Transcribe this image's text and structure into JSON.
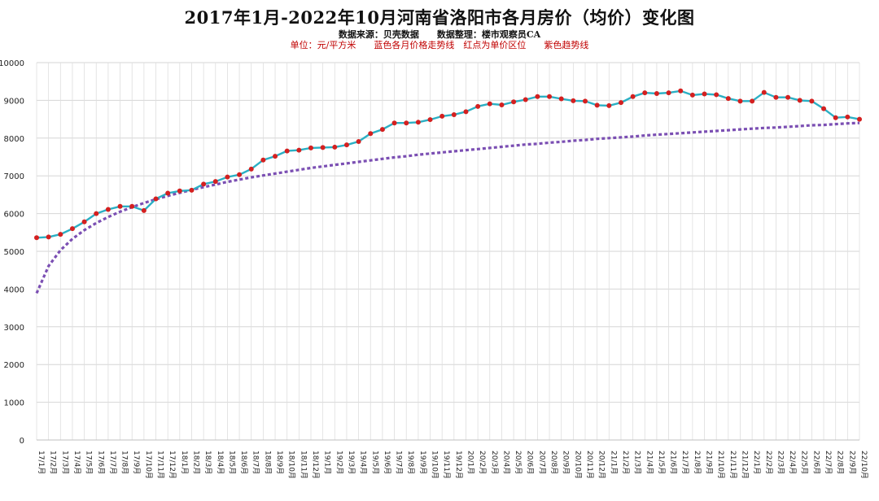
{
  "chart_data": {
    "type": "line",
    "title": "2017年1月-2022年10月河南省洛阳市各月房价（均价）变化图",
    "subtitle": "数据来源：贝壳数据　　数据整理：楼市观察员CA",
    "note": "单位：元/平方米　　蓝色各月价格走势线　红点为单价区位　　紫色趋势线",
    "ylim": [
      0,
      10000
    ],
    "yticks": [
      0,
      1000,
      2000,
      3000,
      4000,
      5000,
      6000,
      7000,
      8000,
      9000,
      10000
    ],
    "grid": true,
    "categories": [
      "17/1月",
      "17/2月",
      "17/3月",
      "17/4月",
      "17/5月",
      "17/6月",
      "17/7月",
      "17/8月",
      "17/9月",
      "17/10月",
      "17/11月",
      "17/12月",
      "18/1月",
      "18/2月",
      "18/3月",
      "18/4月",
      "18/5月",
      "18/6月",
      "18/7月",
      "18/8月",
      "18/9月",
      "18/10月",
      "18/11月",
      "18/12月",
      "19/1月",
      "19/2月",
      "19/3月",
      "19/4月",
      "19/5月",
      "19/6月",
      "19/7月",
      "19/8月",
      "19/9月",
      "19/10月",
      "19/11月",
      "19/12月",
      "20/1月",
      "20/2月",
      "20/3月",
      "20/4月",
      "20/5月",
      "20/6月",
      "20/7月",
      "20/8月",
      "20/9月",
      "20/10月",
      "20/11月",
      "20/12月",
      "21/1月",
      "21/2月",
      "21/3月",
      "21/4月",
      "21/5月",
      "21/6月",
      "21/7月",
      "21/8月",
      "21/9月",
      "21/10月",
      "21/11月",
      "21/12月",
      "22/1月",
      "22/2月",
      "22/3月",
      "22/4月",
      "22/5月",
      "22/6月",
      "22/7月",
      "22/8月",
      "22/9月",
      "22/10月"
    ],
    "series": [
      {
        "type": "line",
        "color": "#2bb0c4",
        "marker_color": "#d42020",
        "values": [
          5360,
          5380,
          5450,
          5600,
          5780,
          6000,
          6110,
          6190,
          6190,
          6080,
          6390,
          6540,
          6600,
          6620,
          6780,
          6850,
          6970,
          7030,
          7180,
          7420,
          7520,
          7660,
          7680,
          7740,
          7750,
          7760,
          7820,
          7910,
          8120,
          8230,
          8400,
          8400,
          8420,
          8490,
          8580,
          8620,
          8700,
          8840,
          8910,
          8880,
          8960,
          9020,
          9100,
          9100,
          9040,
          8990,
          8980,
          8870,
          8860,
          8940,
          9100,
          9200,
          9180,
          9200,
          9250,
          9140,
          9170,
          9150,
          9050,
          8980,
          8980,
          9210,
          9080,
          9080,
          9000,
          8980,
          8780,
          8540,
          8560,
          8500
        ]
      },
      {
        "type": "trend",
        "color": "#7b4fb3",
        "values": [
          3890,
          4610,
          5030,
          5330,
          5560,
          5750,
          5910,
          6050,
          6170,
          6280,
          6380,
          6470,
          6550,
          6630,
          6700,
          6770,
          6840,
          6900,
          6960,
          7010,
          7060,
          7110,
          7160,
          7210,
          7250,
          7290,
          7330,
          7370,
          7410,
          7450,
          7490,
          7520,
          7560,
          7590,
          7620,
          7650,
          7680,
          7710,
          7740,
          7770,
          7800,
          7830,
          7850,
          7880,
          7900,
          7930,
          7950,
          7980,
          8000,
          8020,
          8040,
          8070,
          8090,
          8110,
          8130,
          8150,
          8170,
          8190,
          8210,
          8230,
          8250,
          8270,
          8280,
          8300,
          8320,
          8340,
          8350,
          8370,
          8390,
          8400
        ]
      }
    ]
  }
}
